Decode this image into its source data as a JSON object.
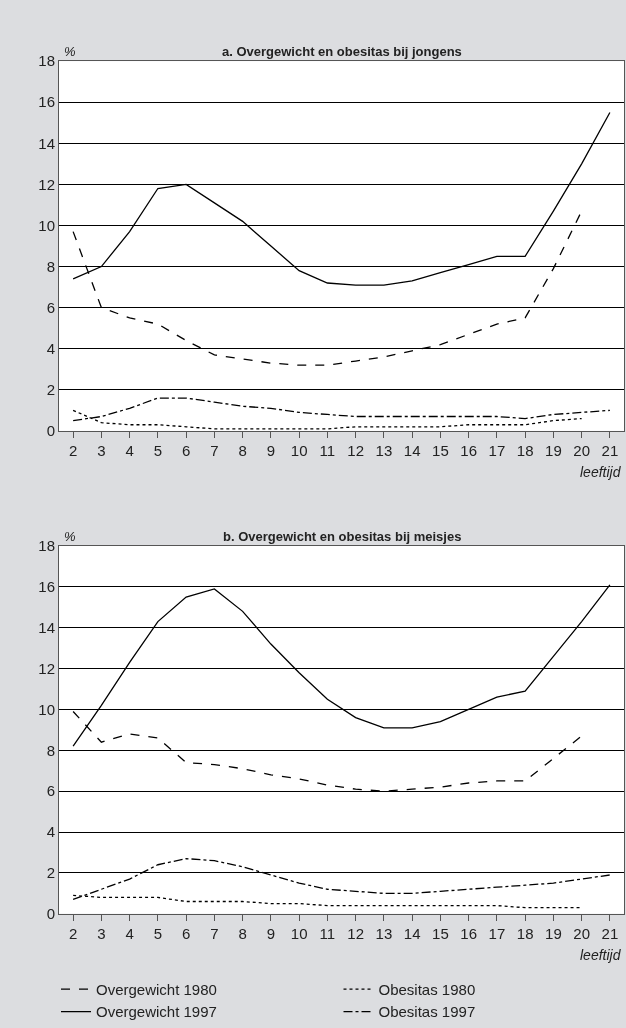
{
  "chart_data": [
    {
      "type": "line",
      "title": "a. Overgewicht en obesitas bij jongens",
      "ylabel": "%",
      "xlabel": "leeftijd",
      "xlim": [
        1.5,
        21.5
      ],
      "xticks": [
        2,
        3,
        4,
        5,
        6,
        7,
        8,
        9,
        10,
        11,
        12,
        13,
        14,
        15,
        16,
        17,
        18,
        19,
        20,
        21
      ],
      "ylim": [
        0,
        18
      ],
      "yticks": [
        0,
        2,
        4,
        6,
        8,
        10,
        12,
        14,
        16,
        18
      ],
      "grid": "y",
      "legend": "bottom",
      "marker": "none",
      "series": [
        {
          "name": "Overgewicht 1980",
          "color": "#000000",
          "line_style": "dashed",
          "x": [
            2,
            3,
            4,
            5,
            6,
            7,
            8,
            9,
            10,
            11,
            12,
            13,
            14,
            15,
            16,
            17,
            18,
            19,
            20
          ],
          "values": [
            9.7,
            6.0,
            5.5,
            5.2,
            4.4,
            3.7,
            3.5,
            3.3,
            3.2,
            3.2,
            3.4,
            3.6,
            3.9,
            4.2,
            4.7,
            5.2,
            5.5,
            7.9,
            10.7
          ]
        },
        {
          "name": "Obesitas 1980",
          "color": "#000000",
          "line_style": "dotted",
          "x": [
            2,
            3,
            4,
            5,
            6,
            7,
            8,
            9,
            10,
            11,
            12,
            13,
            14,
            15,
            16,
            17,
            18,
            19,
            20
          ],
          "values": [
            1.0,
            0.4,
            0.3,
            0.3,
            0.2,
            0.1,
            0.1,
            0.1,
            0.1,
            0.1,
            0.2,
            0.2,
            0.2,
            0.2,
            0.3,
            0.3,
            0.3,
            0.5,
            0.6
          ]
        },
        {
          "name": "Overgewicht 1997",
          "color": "#000000",
          "line_style": "solid",
          "x": [
            2,
            3,
            4,
            5,
            6,
            7,
            8,
            9,
            10,
            11,
            12,
            13,
            14,
            15,
            16,
            17,
            18,
            19,
            20,
            21
          ],
          "values": [
            7.4,
            8.0,
            9.7,
            11.8,
            12.0,
            11.1,
            10.2,
            9.0,
            7.8,
            7.2,
            7.1,
            7.1,
            7.3,
            7.7,
            8.1,
            8.5,
            8.5,
            10.7,
            13.0,
            15.5
          ]
        },
        {
          "name": "Obesitas 1997",
          "color": "#000000",
          "line_style": "dashdot",
          "x": [
            2,
            3,
            4,
            5,
            6,
            7,
            8,
            9,
            10,
            11,
            12,
            13,
            14,
            15,
            16,
            17,
            18,
            19,
            20,
            21
          ],
          "values": [
            0.5,
            0.7,
            1.1,
            1.6,
            1.6,
            1.4,
            1.2,
            1.1,
            0.9,
            0.8,
            0.7,
            0.7,
            0.7,
            0.7,
            0.7,
            0.7,
            0.6,
            0.8,
            0.9,
            1.0
          ]
        }
      ]
    },
    {
      "type": "line",
      "title": "b. Overgewicht en obesitas bij meisjes",
      "ylabel": "%",
      "xlabel": "leeftijd",
      "xlim": [
        1.5,
        21.5
      ],
      "xticks": [
        2,
        3,
        4,
        5,
        6,
        7,
        8,
        9,
        10,
        11,
        12,
        13,
        14,
        15,
        16,
        17,
        18,
        19,
        20,
        21
      ],
      "ylim": [
        0,
        18
      ],
      "yticks": [
        0,
        2,
        4,
        6,
        8,
        10,
        12,
        14,
        16,
        18
      ],
      "grid": "y",
      "legend": "bottom",
      "marker": "none",
      "series": [
        {
          "color": "#000000",
          "line_style": "dashed",
          "x": [
            2,
            3,
            4,
            5,
            6,
            7,
            8,
            9,
            10,
            11,
            12,
            13,
            14,
            15,
            16,
            17,
            18,
            19,
            20
          ],
          "values": [
            9.9,
            8.4,
            8.8,
            8.6,
            7.4,
            7.3,
            7.1,
            6.8,
            6.6,
            6.3,
            6.1,
            6.0,
            6.1,
            6.2,
            6.4,
            6.5,
            6.5,
            7.6,
            8.7
          ]
        },
        {
          "color": "#000000",
          "line_style": "dotted",
          "x": [
            2,
            3,
            4,
            5,
            6,
            7,
            8,
            9,
            10,
            11,
            12,
            13,
            14,
            15,
            16,
            17,
            18,
            19,
            20
          ],
          "values": [
            0.9,
            0.8,
            0.8,
            0.8,
            0.6,
            0.6,
            0.6,
            0.5,
            0.5,
            0.4,
            0.4,
            0.4,
            0.4,
            0.4,
            0.4,
            0.4,
            0.3,
            0.3,
            0.3
          ]
        },
        {
          "color": "#000000",
          "line_style": "solid",
          "x": [
            2,
            3,
            4,
            5,
            6,
            7,
            8,
            9,
            10,
            11,
            12,
            13,
            14,
            15,
            16,
            17,
            18,
            19,
            20,
            21
          ],
          "values": [
            8.2,
            10.2,
            12.3,
            14.3,
            15.5,
            15.9,
            14.8,
            13.2,
            11.8,
            10.5,
            9.6,
            9.1,
            9.1,
            9.4,
            10.0,
            10.6,
            10.9,
            12.6,
            14.3,
            16.1
          ]
        },
        {
          "color": "#000000",
          "line_style": "dashdot",
          "x": [
            2,
            3,
            4,
            5,
            6,
            7,
            8,
            9,
            10,
            11,
            12,
            13,
            14,
            15,
            16,
            17,
            18,
            19,
            20,
            21
          ],
          "values": [
            0.7,
            1.2,
            1.7,
            2.4,
            2.7,
            2.6,
            2.3,
            1.9,
            1.5,
            1.2,
            1.1,
            1.0,
            1.0,
            1.1,
            1.2,
            1.3,
            1.4,
            1.5,
            1.7,
            1.9
          ]
        }
      ]
    }
  ]
}
